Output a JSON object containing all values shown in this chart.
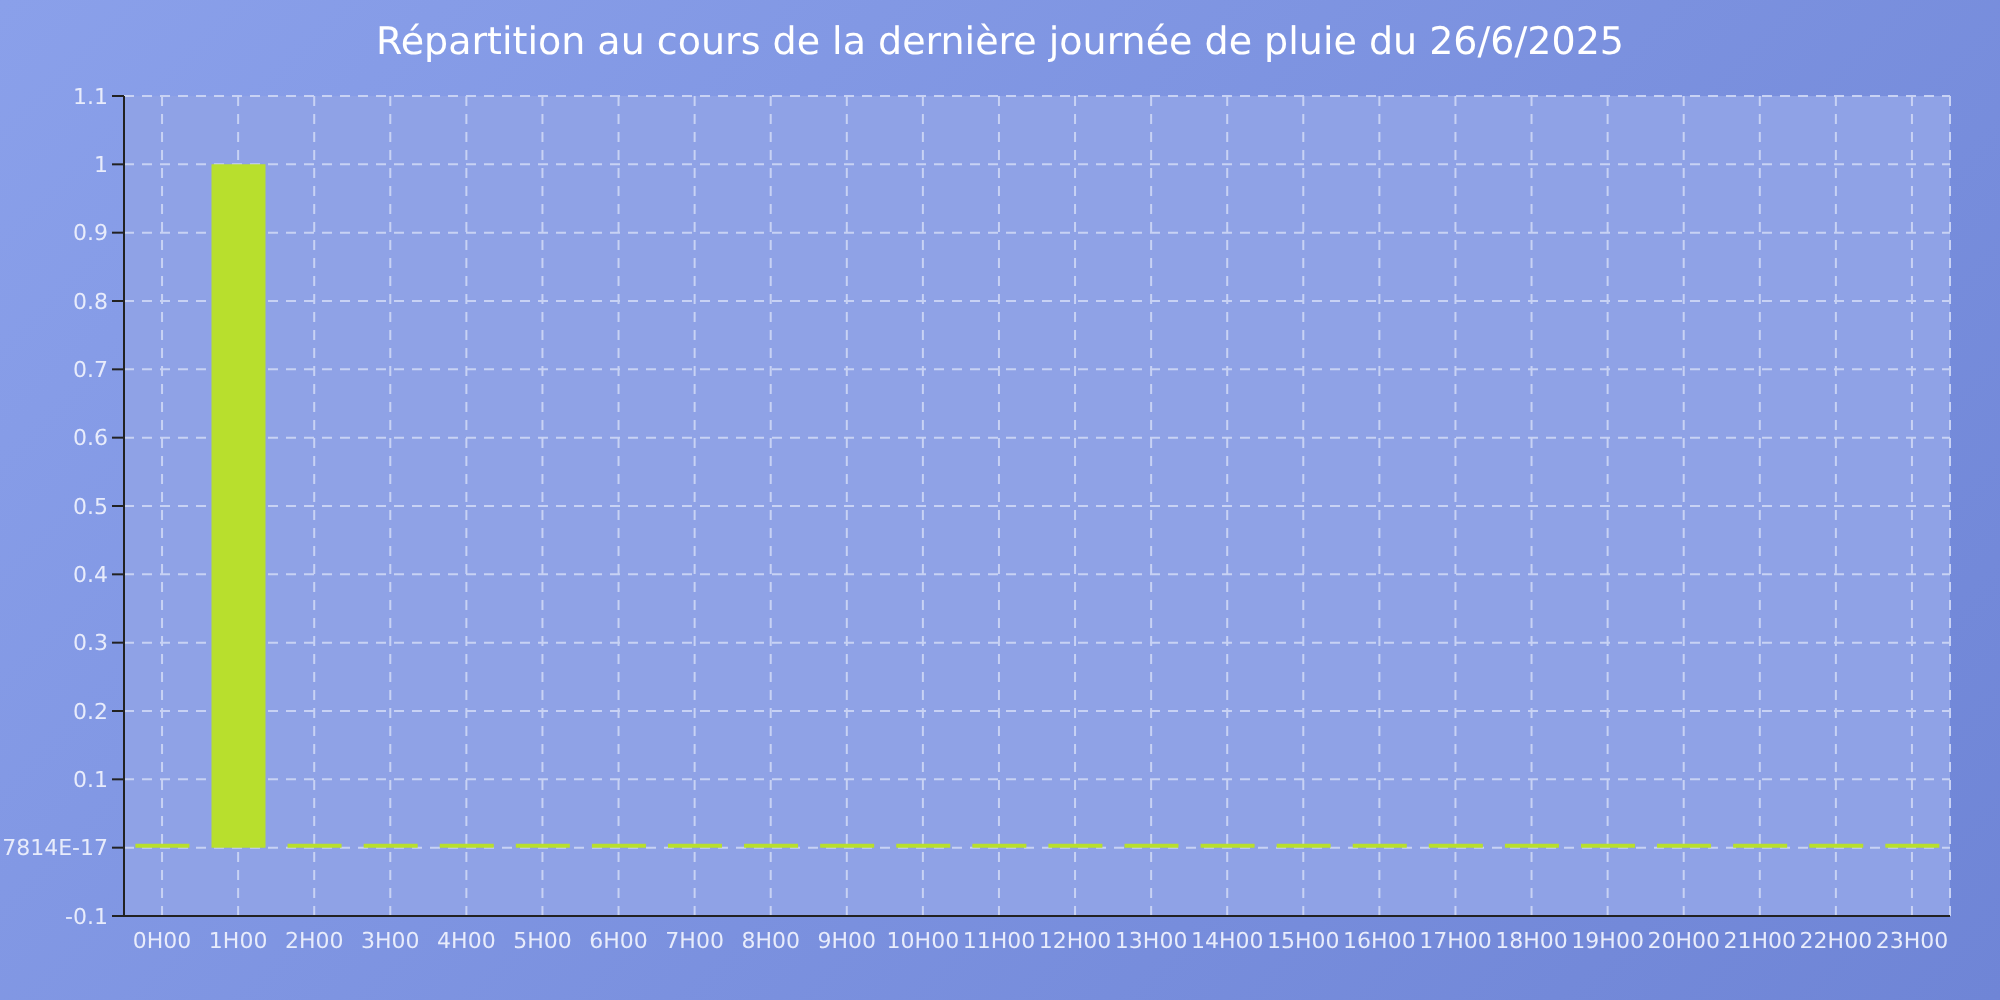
{
  "chart_data": {
    "type": "bar",
    "title": "Répartition au cours de la dernière journée de pluie du 26/6/2025",
    "categories": [
      "0H00",
      "1H00",
      "2H00",
      "3H00",
      "4H00",
      "5H00",
      "6H00",
      "7H00",
      "8H00",
      "9H00",
      "10H00",
      "11H00",
      "12H00",
      "13H00",
      "14H00",
      "15H00",
      "16H00",
      "17H00",
      "18H00",
      "19H00",
      "20H00",
      "21H00",
      "22H00",
      "23H00"
    ],
    "values": [
      0,
      1,
      0,
      0,
      0,
      0,
      0,
      0,
      0,
      0,
      0,
      0,
      0,
      0,
      0,
      0,
      0,
      0,
      0,
      0,
      0,
      0,
      0,
      0
    ],
    "color": "#b8df2d",
    "ylim": [
      -0.1,
      1.1
    ],
    "yticks": [
      -0.1,
      {
        "value": 0,
        "label": "7814E-17"
      },
      0.1,
      0.2,
      0.3,
      0.4,
      0.5,
      0.6,
      0.7,
      0.8,
      0.9,
      1,
      1.1
    ],
    "grid": true
  }
}
